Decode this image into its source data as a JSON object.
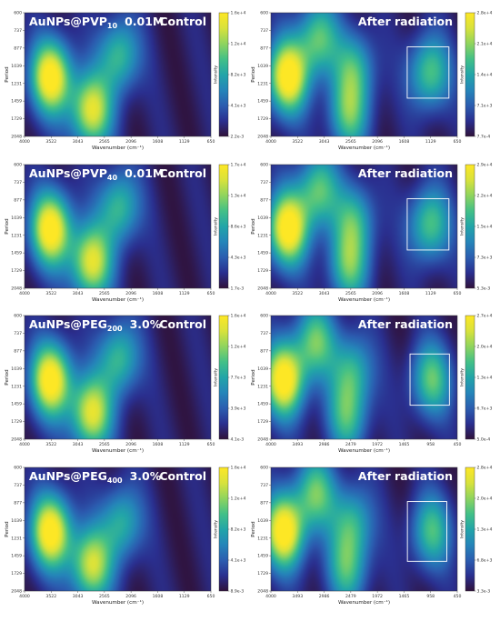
{
  "chart_data": [
    {
      "type": "heatmap",
      "material": "AuNPs@PVP",
      "material_sub": "10",
      "concentration": "0.01M",
      "condition": "Control",
      "xlabel": "Wavenumber (cm⁻¹)",
      "ylabel": "Period",
      "x_ticks": [
        "4000",
        "3522",
        "3043",
        "2565",
        "2096",
        "1608",
        "1129",
        "650"
      ],
      "y_ticks": [
        "600",
        "737",
        "877",
        "1039",
        "1231",
        "1459",
        "1729",
        "2048"
      ],
      "colorbar_label": "Intensity",
      "colorbar_ticks": [
        "1.6e+4",
        "1.2e+4",
        "8.2e+3",
        "4.1e+3",
        "2.2e-3"
      ],
      "peaks": [
        {
          "wavenumber": 3522,
          "period": 1350,
          "strength": 1.0
        },
        {
          "wavenumber": 2300,
          "period": 1100,
          "strength": 0.55
        },
        {
          "wavenumber": 2800,
          "period": 1750,
          "strength": 0.85
        }
      ]
    },
    {
      "type": "heatmap",
      "condition": "After radiation",
      "xlabel": "Wavenumber (cm⁻¹)",
      "ylabel": "Period",
      "x_ticks": [
        "4000",
        "3522",
        "3043",
        "2565",
        "2096",
        "1608",
        "1129",
        "650"
      ],
      "y_ticks": [
        "600",
        "737",
        "877",
        "1039",
        "1231",
        "1459",
        "1729",
        "2048"
      ],
      "colorbar_label": "Intensity",
      "colorbar_ticks": [
        "2.8e+4",
        "2.1e+4",
        "1.4e+4",
        "7.1e+3",
        "7.7e-4"
      ],
      "highlight_box": {
        "x_from": 1550,
        "x_to": 800,
        "period_from": 1000,
        "period_to": 1600
      },
      "peaks": [
        {
          "wavenumber": 3700,
          "period": 1350,
          "strength": 1.0
        },
        {
          "wavenumber": 3150,
          "period": 900,
          "strength": 0.6
        },
        {
          "wavenumber": 2500,
          "period": 1250,
          "strength": 0.5
        },
        {
          "wavenumber": 1150,
          "period": 1300,
          "strength": 0.6
        },
        {
          "wavenumber": 2600,
          "period": 1800,
          "strength": 0.55
        }
      ]
    },
    {
      "type": "heatmap",
      "material": "AuNPs@PVP",
      "material_sub": "40",
      "concentration": "0.01M",
      "condition": "Control",
      "xlabel": "Wavenumber (cm⁻¹)",
      "ylabel": "Period",
      "x_ticks": [
        "4000",
        "3522",
        "3043",
        "2565",
        "2096",
        "1608",
        "1129",
        "650"
      ],
      "y_ticks": [
        "600",
        "737",
        "877",
        "1039",
        "1231",
        "1459",
        "1729",
        "2048"
      ],
      "colorbar_label": "Intensity",
      "colorbar_ticks": [
        "1.7e+4",
        "1.3e+4",
        "8.6e+3",
        "4.3e+3",
        "1.7e-3"
      ],
      "peaks": [
        {
          "wavenumber": 3522,
          "period": 1350,
          "strength": 1.0
        },
        {
          "wavenumber": 2300,
          "period": 1100,
          "strength": 0.55
        },
        {
          "wavenumber": 2800,
          "period": 1750,
          "strength": 0.85
        }
      ]
    },
    {
      "type": "heatmap",
      "condition": "After radiation",
      "xlabel": "Wavenumber (cm⁻¹)",
      "ylabel": "Period",
      "x_ticks": [
        "4000",
        "3522",
        "3043",
        "2565",
        "2096",
        "1608",
        "1129",
        "650"
      ],
      "y_ticks": [
        "600",
        "737",
        "877",
        "1039",
        "1231",
        "1459",
        "1729",
        "2048"
      ],
      "colorbar_label": "Intensity",
      "colorbar_ticks": [
        "2.9e+4",
        "2.2e+4",
        "1.5e+4",
        "7.3e+3",
        "5.3e-3"
      ],
      "highlight_box": {
        "x_from": 1550,
        "x_to": 800,
        "period_from": 1000,
        "period_to": 1600
      },
      "peaks": [
        {
          "wavenumber": 3700,
          "period": 1350,
          "strength": 1.0
        },
        {
          "wavenumber": 3150,
          "period": 900,
          "strength": 0.6
        },
        {
          "wavenumber": 2500,
          "period": 1250,
          "strength": 0.5
        },
        {
          "wavenumber": 1150,
          "period": 1300,
          "strength": 0.6
        },
        {
          "wavenumber": 2600,
          "period": 1800,
          "strength": 0.55
        }
      ]
    },
    {
      "type": "heatmap",
      "material": "AuNPs@PEG",
      "material_sub": "200",
      "concentration": "3.0%",
      "condition": "Control",
      "xlabel": "Wavenumber (cm⁻¹)",
      "ylabel": "Period",
      "x_ticks": [
        "4000",
        "3522",
        "3043",
        "2565",
        "2096",
        "1608",
        "1129",
        "650"
      ],
      "y_ticks": [
        "600",
        "737",
        "877",
        "1039",
        "1231",
        "1459",
        "1729",
        "2048"
      ],
      "colorbar_label": "Intensity",
      "colorbar_ticks": [
        "1.6e+4",
        "1.2e+4",
        "7.7e+3",
        "3.9e+3",
        "4.1e-3"
      ],
      "peaks": [
        {
          "wavenumber": 3522,
          "period": 1350,
          "strength": 1.0
        },
        {
          "wavenumber": 2300,
          "period": 1100,
          "strength": 0.55
        },
        {
          "wavenumber": 2800,
          "period": 1750,
          "strength": 0.85
        }
      ]
    },
    {
      "type": "heatmap",
      "condition": "After radiation",
      "xlabel": "Wavenumber (cm⁻¹)",
      "ylabel": "Period",
      "x_ticks": [
        "4000",
        "3493",
        "2986",
        "2479",
        "1972",
        "1465",
        "958",
        "450"
      ],
      "y_ticks": [
        "600",
        "737",
        "877",
        "1039",
        "1231",
        "1459",
        "1729",
        "2048"
      ],
      "colorbar_label": "Intensity",
      "colorbar_ticks": [
        "2.7e+4",
        "2.0e+4",
        "1.3e+4",
        "6.7e+3",
        "5.0e-4"
      ],
      "highlight_box": {
        "x_from": 1350,
        "x_to": 600,
        "period_from": 1050,
        "period_to": 1650
      },
      "peaks": [
        {
          "wavenumber": 3750,
          "period": 1350,
          "strength": 1.0
        },
        {
          "wavenumber": 3150,
          "period": 900,
          "strength": 0.6
        },
        {
          "wavenumber": 2450,
          "period": 1250,
          "strength": 0.5
        },
        {
          "wavenumber": 950,
          "period": 1350,
          "strength": 0.6
        },
        {
          "wavenumber": 2550,
          "period": 1800,
          "strength": 0.5
        }
      ]
    },
    {
      "type": "heatmap",
      "material": "AuNPs@PEG",
      "material_sub": "400",
      "concentration": "3.0%",
      "condition": "Control",
      "xlabel": "Wavenumber (cm⁻¹)",
      "ylabel": "Period",
      "x_ticks": [
        "4000",
        "3522",
        "3043",
        "2565",
        "2096",
        "1608",
        "1129",
        "650"
      ],
      "y_ticks": [
        "600",
        "737",
        "877",
        "1039",
        "1231",
        "1459",
        "1729",
        "2048"
      ],
      "colorbar_label": "Intensity",
      "colorbar_ticks": [
        "1.6e+4",
        "1.2e+4",
        "8.2e+3",
        "4.1e+3",
        "8.9e-3"
      ],
      "peaks": [
        {
          "wavenumber": 3522,
          "period": 1350,
          "strength": 1.0
        },
        {
          "wavenumber": 2250,
          "period": 1250,
          "strength": 0.5
        },
        {
          "wavenumber": 2800,
          "period": 1750,
          "strength": 0.8
        }
      ]
    },
    {
      "type": "heatmap",
      "condition": "After radiation",
      "xlabel": "Wavenumber (cm⁻¹)",
      "ylabel": "Period",
      "x_ticks": [
        "4000",
        "3493",
        "2986",
        "2479",
        "1972",
        "1465",
        "958",
        "450"
      ],
      "y_ticks": [
        "600",
        "737",
        "877",
        "1039",
        "1231",
        "1459",
        "1729",
        "2048"
      ],
      "colorbar_label": "Intensity",
      "colorbar_ticks": [
        "2.8e+4",
        "2.0e+4",
        "1.3e+4",
        "6.8e+3",
        "3.3e-3"
      ],
      "highlight_box": {
        "x_from": 1400,
        "x_to": 650,
        "period_from": 1000,
        "period_to": 1700
      },
      "peaks": [
        {
          "wavenumber": 3750,
          "period": 1350,
          "strength": 1.0
        },
        {
          "wavenumber": 3150,
          "period": 900,
          "strength": 0.6
        },
        {
          "wavenumber": 2450,
          "period": 1250,
          "strength": 0.5
        },
        {
          "wavenumber": 950,
          "period": 1350,
          "strength": 0.55
        },
        {
          "wavenumber": 2550,
          "period": 1800,
          "strength": 0.5
        }
      ]
    }
  ],
  "colors": {
    "colormap": [
      "#30123b",
      "#2a2f8f",
      "#2b5db0",
      "#2585b9",
      "#22a5a8",
      "#43c087",
      "#8fd45e",
      "#d8e23c",
      "#fde725"
    ],
    "highlight_box": "#ffffff",
    "title_text": "#ffffff"
  }
}
